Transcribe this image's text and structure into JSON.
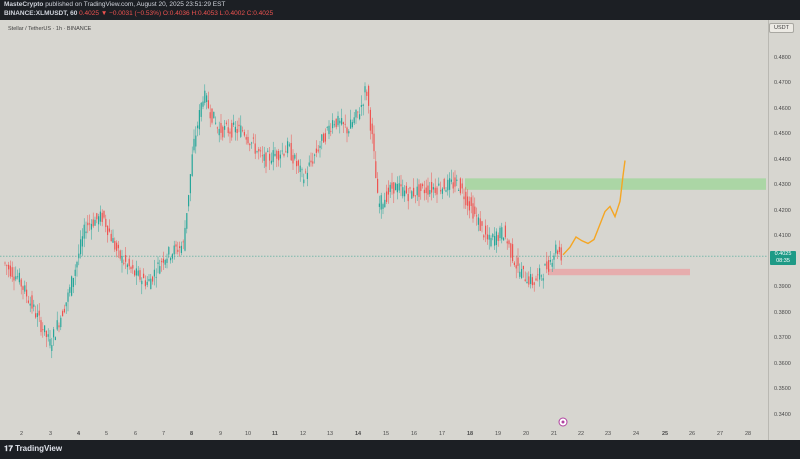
{
  "header": {
    "author": "MasteCrypto",
    "published_text": "published on TradingView.com, August 20, 2025 23:51:29 EST",
    "symbol": "BINANCE:XLMUSDT, 60",
    "last": "0.4025",
    "change": "▼ −0.0031 (−0.53%)",
    "ohlc": "O:0.4036 H:0.4053 L:0.4002 C:0.4025"
  },
  "chart": {
    "title": "Stellar / TetherUS · 1h · BINANCE",
    "currency": "USDT",
    "price_ticks": [
      "0.4800",
      "0.4700",
      "0.4600",
      "0.4500",
      "0.4400",
      "0.4300",
      "0.4200",
      "0.4100",
      "0.3900",
      "0.3800",
      "0.3700",
      "0.3600",
      "0.3500",
      "0.3400"
    ],
    "time_ticks": [
      "2",
      "3",
      "4",
      "5",
      "6",
      "7",
      "8",
      "9",
      "10",
      "11",
      "12",
      "13",
      "14",
      "15",
      "16",
      "17",
      "18",
      "19",
      "20",
      "21",
      "22",
      "23",
      "24",
      "25",
      "26",
      "27",
      "28"
    ],
    "bold_time_ticks": [
      "4",
      "8",
      "11",
      "14",
      "18",
      "25"
    ],
    "current_price": "0.4025",
    "countdown": "08:35",
    "colors": {
      "up": "#26a69a",
      "down": "#ef5350",
      "projection": "#f5a623",
      "target_zone": "#a6d6a0",
      "support_zone": "#e8a8a8",
      "background": "#d7d6d0"
    }
  },
  "footer": {
    "logo": "TradingView"
  }
}
